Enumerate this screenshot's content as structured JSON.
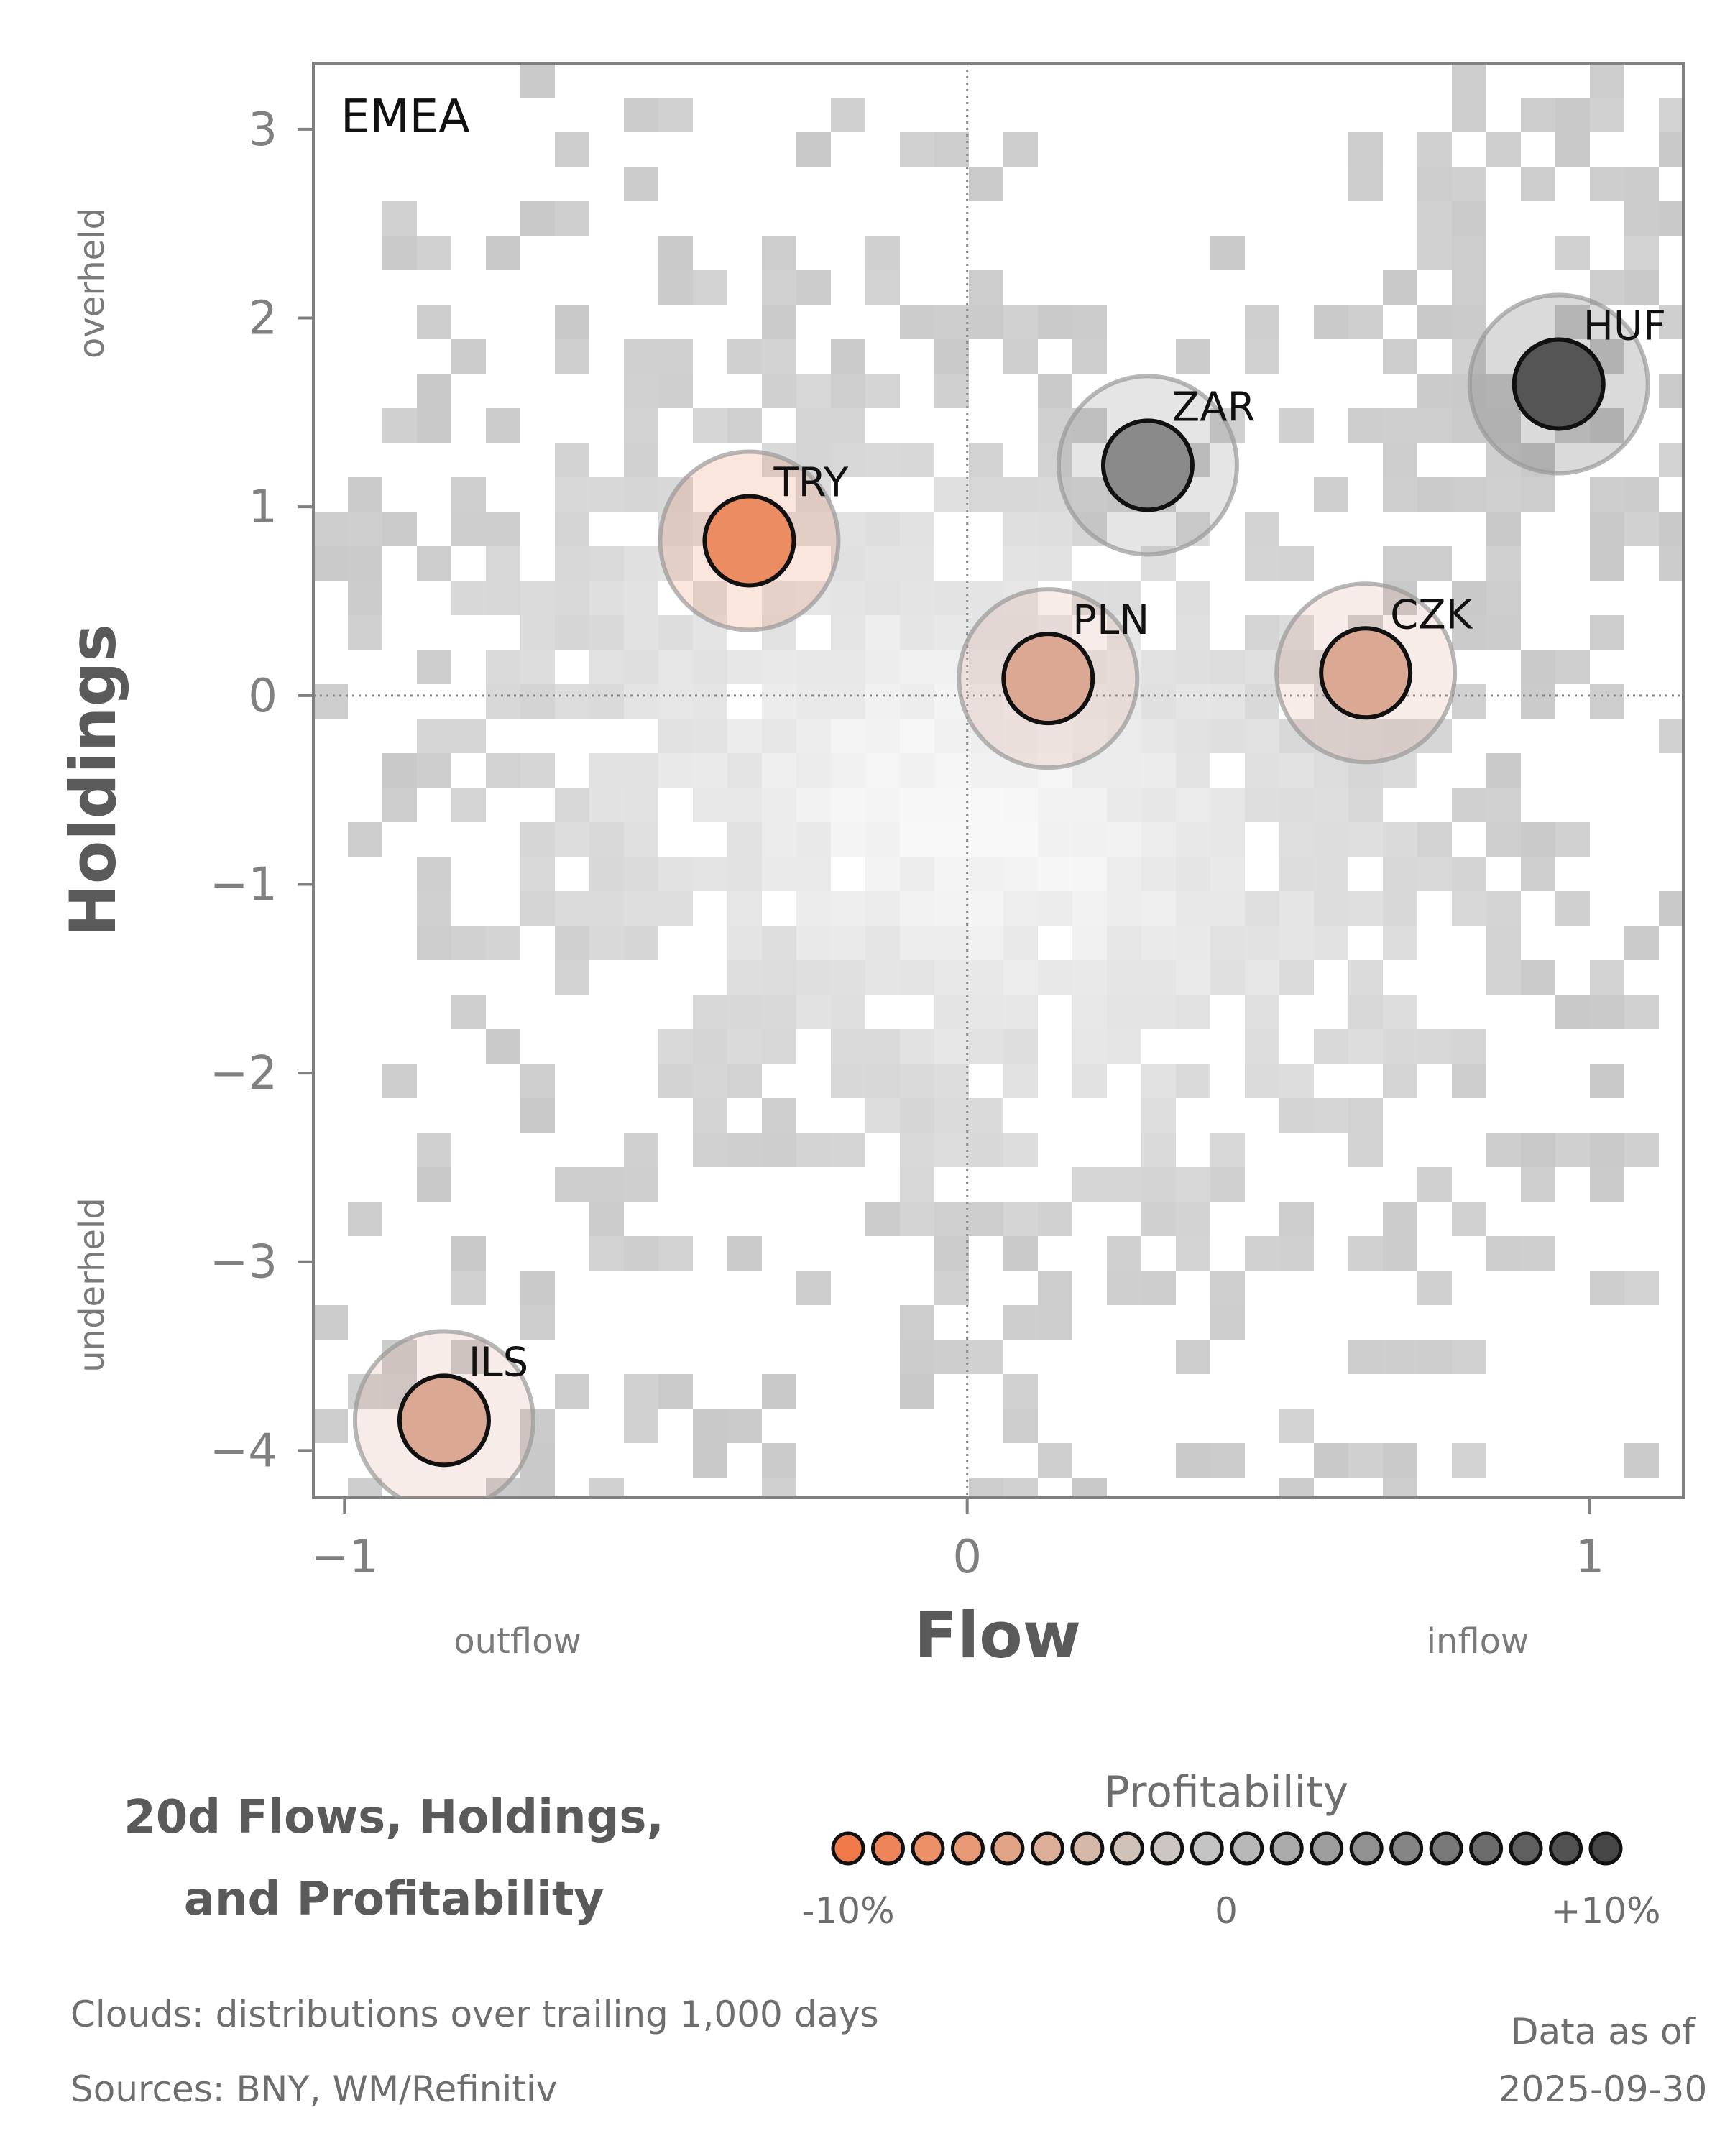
{
  "chart_data": {
    "type": "scatter",
    "panel_label": "EMEA",
    "xlabel": "Flow",
    "ylabel": "Holdings",
    "xlim": [
      -1.05,
      1.15
    ],
    "ylim": [
      -4.25,
      3.35
    ],
    "x_ticks": [
      -1,
      0,
      1
    ],
    "x_tick_labels": [
      "−1",
      "0",
      "1"
    ],
    "y_ticks": [
      3,
      2,
      1,
      0,
      -1,
      -2,
      -3,
      -4
    ],
    "y_tick_labels": [
      "3",
      "2",
      "1",
      "0",
      "−1",
      "−2",
      "−3",
      "−4"
    ],
    "x_direction_labels": {
      "low": "outflow",
      "high": "inflow"
    },
    "y_direction_labels": {
      "low": "underheld",
      "high": "overheld"
    },
    "reference_lines": {
      "x": 0,
      "y": 0,
      "style": "dotted"
    },
    "grid": false,
    "points": [
      {
        "label": "HUF",
        "x": 0.95,
        "y": 1.65,
        "profitability": 9,
        "color": "#555555"
      },
      {
        "label": "ZAR",
        "x": 0.29,
        "y": 1.22,
        "profitability": 3,
        "color": "#8a8a8a"
      },
      {
        "label": "TRY",
        "x": -0.35,
        "y": 0.82,
        "profitability": -8,
        "color": "#ec8c62"
      },
      {
        "label": "PLN",
        "x": 0.13,
        "y": 0.09,
        "profitability": -5,
        "color": "#dba893"
      },
      {
        "label": "CZK",
        "x": 0.64,
        "y": 0.12,
        "profitability": -5,
        "color": "#dba893"
      },
      {
        "label": "ILS",
        "x": -0.84,
        "y": -3.84,
        "profitability": -5,
        "color": "#dba893"
      }
    ],
    "background": "2D density cloud of trailing distribution (grey tiles)"
  },
  "legend": {
    "title": "Profitability",
    "ticks": [
      "-10%",
      "0",
      "+10%"
    ],
    "colors": [
      "#f07a4a",
      "#ee855a",
      "#ec9068",
      "#e89a77",
      "#e2a487",
      "#dcae97",
      "#d6b8a8",
      "#d0c2b8",
      "#cbc6c3",
      "#c4c4c4",
      "#b8b8b8",
      "#ababab",
      "#9e9e9e",
      "#919191",
      "#858585",
      "#787878",
      "#6c6c6c",
      "#5f5f5f",
      "#525252",
      "#464646"
    ]
  },
  "title": {
    "line1": "20d Flows, Holdings,",
    "line2": "and Profitability"
  },
  "footer": {
    "clouds": "Clouds:  distributions over trailing 1,000 days",
    "sources": "Sources:  BNY, WM/Refinitiv",
    "asof_label": "Data as of",
    "asof_date": "2025-09-30"
  }
}
